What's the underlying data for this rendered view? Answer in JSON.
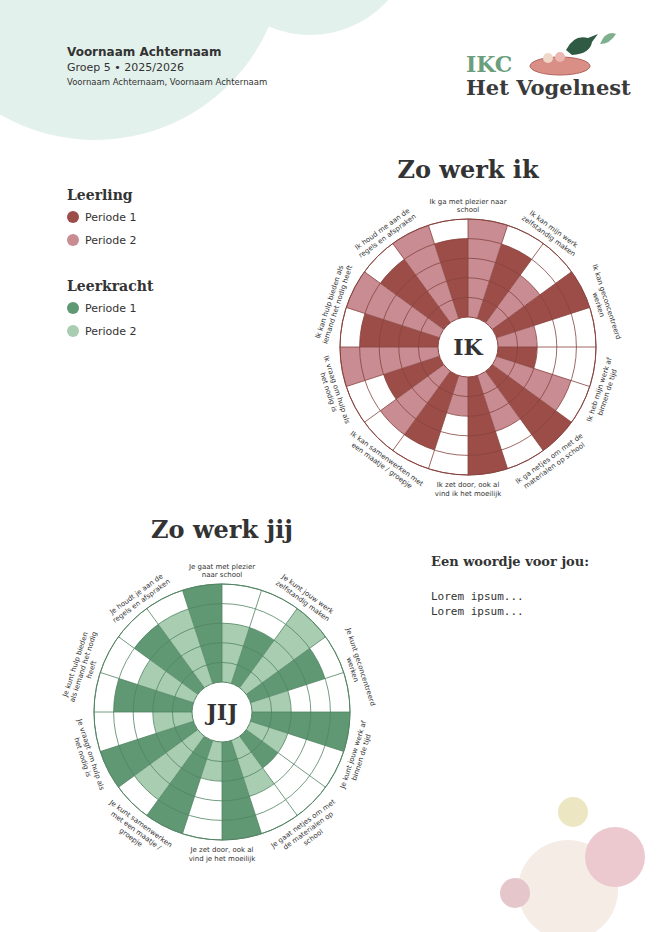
{
  "header": {
    "name": "Voornaam Achternaam",
    "group": "Groep 5 • 2025/2026",
    "teachers": "Voornaam Achternaam, Voornaam Achternaam"
  },
  "logo": {
    "line1": "IKC",
    "line2": "Het Vogelnest"
  },
  "chart_data": [
    {
      "type": "radial_bar",
      "title": "Zo werk ik",
      "center_label": "IK",
      "legend_title": "Leerling",
      "legend": "top-left",
      "categories": [
        "Ik ga met plezier naar school",
        "Ik kan mijn werk zelfstandig maken",
        "Ik kan geconcentreerd werken",
        "Ik heb mijn werk af binnen de tijd",
        "Ik ga netjes om met de materialen op school",
        "Ik zet door, ook al vind ik het moeilijk",
        "Ik kan samenwerken met een maatje / groepje",
        "Ik vraag om hulp als het nodig is",
        "Ik kan hulp bieden als iemand het nodig heeft",
        "Ik houd me aan de regels en afspraken"
      ],
      "series": [
        {
          "name": "Periode 1",
          "color": "#9c4d48",
          "values": [
            4,
            4,
            5,
            2,
            5,
            5,
            4,
            3,
            4,
            4
          ]
        },
        {
          "name": "Periode 2",
          "color": "#c98c92",
          "values": [
            5,
            3,
            2,
            4,
            3,
            2,
            4,
            5,
            5,
            5
          ]
        }
      ],
      "ylim": [
        0,
        5
      ],
      "yticks": [
        1,
        2,
        3,
        4,
        5
      ],
      "grid": true,
      "tick_labels": false
    },
    {
      "type": "radial_bar",
      "title": "Zo werk jij",
      "center_label": "JIJ",
      "legend_title": "Leerkracht",
      "legend": "top-left",
      "categories": [
        "Je gaat met plezier naar school",
        "Je kunt jouw werk zelfstandig maken",
        "Je kunt geconcentreerd werken",
        "Je kunt jouw werk af binnen de tijd",
        "Je gaat netjes om met de materialen op school",
        "Je zet door, ook al vind je het moeilijk",
        "Je kunt samenwerken met een maatje / groepje",
        "Je vraagt om hulp als het nodig is",
        "Je kunt hulp bieden als iemand het nodig heeft",
        "Je houdt je aan de regels en afspraken"
      ],
      "series": [
        {
          "name": "Periode 1",
          "color": "#5f9872",
          "values": [
            5,
            3,
            4,
            5,
            2,
            5,
            5,
            5,
            4,
            4
          ]
        },
        {
          "name": "Periode 2",
          "color": "#a9cdb1",
          "values": [
            3,
            5,
            2,
            2,
            3,
            2,
            4,
            2,
            3,
            4
          ]
        }
      ],
      "ylim": [
        0,
        5
      ],
      "yticks": [
        1,
        2,
        3,
        4,
        5
      ],
      "grid": true,
      "tick_labels": false
    }
  ],
  "note": {
    "title": "Een woordje voor jou:",
    "lines": [
      "Lorem ipsum...",
      "Lorem ipsum..."
    ]
  }
}
